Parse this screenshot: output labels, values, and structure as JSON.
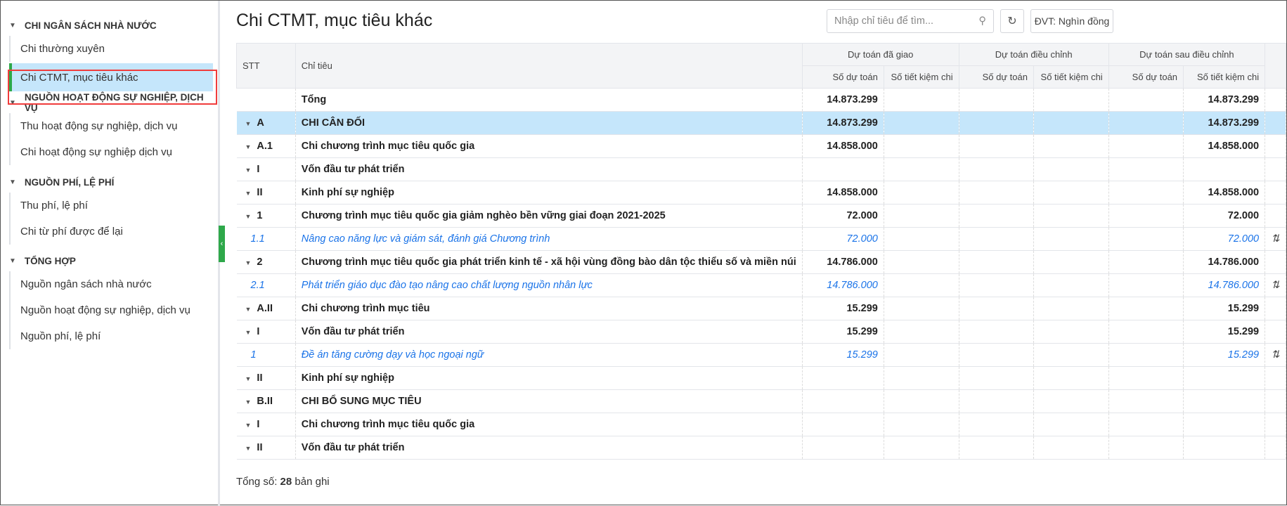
{
  "sidebar": {
    "groups": [
      {
        "label": "CHI NGÂN SÁCH NHÀ NƯỚC",
        "items": [
          "Chi thường xuyên",
          "Chi CTMT, mục tiêu khác"
        ]
      },
      {
        "label": "NGUỒN HOẠT ĐỘNG SỰ NGHIỆP, DỊCH VỤ",
        "items": [
          "Thu hoạt động sự nghiệp, dịch vụ",
          "Chi hoạt động sự nghiệp dịch vụ"
        ]
      },
      {
        "label": "NGUỒN PHÍ, LỆ PHÍ",
        "items": [
          "Thu phí, lệ phí",
          "Chi từ phí được để lại"
        ]
      },
      {
        "label": "TỔNG HỢP",
        "items": [
          "Nguồn ngân sách nhà nước",
          "Nguồn hoạt động sự nghiệp, dịch vụ",
          "Nguồn phí, lệ phí"
        ]
      }
    ],
    "selected": "Chi CTMT, mục tiêu khác"
  },
  "header": {
    "title": "Chi CTMT, mục tiêu khác",
    "search_placeholder": "Nhập chỉ tiêu để tìm...",
    "unit": "ĐVT: Nghìn đồng"
  },
  "table": {
    "columns": {
      "stt": "STT",
      "chi_tieu": "Chỉ tiêu",
      "groups": [
        "Dự toán đã giao",
        "Dự toán điều chỉnh",
        "Dự toán sau điều chỉnh"
      ],
      "sub": [
        "Số dự toán",
        "Số tiết kiệm chi"
      ]
    },
    "rows": [
      {
        "stt": "",
        "name": "Tổng",
        "v": [
          "14.873.299",
          "",
          "",
          "",
          "",
          "14.873.299"
        ],
        "style": "b"
      },
      {
        "stt": "A",
        "name": "CHI CÂN ĐỐI",
        "v": [
          "14.873.299",
          "",
          "",
          "",
          "",
          "14.873.299"
        ],
        "style": "b hl",
        "caret": true
      },
      {
        "stt": "A.1",
        "name": "Chi chương trình mục tiêu quốc gia",
        "v": [
          "14.858.000",
          "",
          "",
          "",
          "",
          "14.858.000"
        ],
        "style": "b",
        "caret": true
      },
      {
        "stt": "I",
        "name": "Vốn đầu tư phát triển",
        "v": [
          "",
          "",
          "",
          "",
          "",
          ""
        ],
        "style": "b",
        "caret": true
      },
      {
        "stt": "II",
        "name": "Kinh phí sự nghiệp",
        "v": [
          "14.858.000",
          "",
          "",
          "",
          "",
          "14.858.000"
        ],
        "style": "b",
        "caret": true
      },
      {
        "stt": "1",
        "name": "Chương trình mục tiêu quốc gia giảm nghèo bền vững giai đoạn 2021-2025",
        "v": [
          "72.000",
          "",
          "",
          "",
          "",
          "72.000"
        ],
        "style": "b",
        "caret": true
      },
      {
        "stt": "1.1",
        "name": "Nâng cao năng lực và giám sát, đánh giá Chương trình",
        "v": [
          "72.000",
          "",
          "",
          "",
          "",
          "72.000"
        ],
        "style": "it",
        "sort": true
      },
      {
        "stt": "2",
        "name": "Chương trình mục tiêu quốc gia phát triển kinh tế - xã hội vùng đồng bào dân tộc thiểu số và miền núi",
        "v": [
          "14.786.000",
          "",
          "",
          "",
          "",
          "14.786.000"
        ],
        "style": "b",
        "caret": true
      },
      {
        "stt": "2.1",
        "name": "Phát triển giáo dục đào tạo nâng cao chất lượng nguồn nhân lực",
        "v": [
          "14.786.000",
          "",
          "",
          "",
          "",
          "14.786.000"
        ],
        "style": "it",
        "sort": true
      },
      {
        "stt": "A.II",
        "name": "Chi chương trình mục tiêu",
        "v": [
          "15.299",
          "",
          "",
          "",
          "",
          "15.299"
        ],
        "style": "b",
        "caret": true
      },
      {
        "stt": "I",
        "name": "Vốn đầu tư phát triển",
        "v": [
          "15.299",
          "",
          "",
          "",
          "",
          "15.299"
        ],
        "style": "b",
        "caret": true
      },
      {
        "stt": "1",
        "name": "Đề án tăng cường dạy và học ngoại ngữ",
        "v": [
          "15.299",
          "",
          "",
          "",
          "",
          "15.299"
        ],
        "style": "it",
        "sort": true
      },
      {
        "stt": "II",
        "name": "Kinh phí sự nghiệp",
        "v": [
          "",
          "",
          "",
          "",
          "",
          ""
        ],
        "style": "b",
        "caret": true
      },
      {
        "stt": "B.II",
        "name": "CHI BỔ SUNG MỤC TIÊU",
        "v": [
          "",
          "",
          "",
          "",
          "",
          ""
        ],
        "style": "b",
        "caret": true
      },
      {
        "stt": "I",
        "name": "Chi chương trình mục tiêu quốc gia",
        "v": [
          "",
          "",
          "",
          "",
          "",
          ""
        ],
        "style": "b",
        "caret": true
      },
      {
        "stt": "II",
        "name": "Vốn đầu tư phát triển",
        "v": [
          "",
          "",
          "",
          "",
          "",
          ""
        ],
        "style": "b",
        "caret": true
      }
    ]
  },
  "footer": {
    "prefix": "Tổng số: ",
    "count": "28",
    "suffix": " bản ghi"
  }
}
